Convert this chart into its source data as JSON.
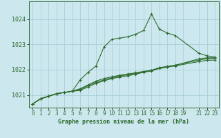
{
  "title": "Graphe pression niveau de la mer (hPa)",
  "bg_color": "#cce8ee",
  "grid_color": "#aacfd8",
  "line_color": "#2d6a2d",
  "xlim": [
    -0.5,
    23.5
  ],
  "ylim": [
    1020.5,
    1024.7
  ],
  "xticks": [
    0,
    1,
    2,
    3,
    4,
    5,
    6,
    7,
    8,
    9,
    10,
    11,
    12,
    13,
    14,
    15,
    16,
    17,
    18,
    19,
    21,
    22,
    23
  ],
  "yticks": [
    1021,
    1022,
    1023,
    1024
  ],
  "series": [
    {
      "x": [
        0,
        1,
        2,
        3,
        4,
        5,
        6,
        7,
        8,
        9,
        10,
        11,
        12,
        13,
        14,
        15,
        16,
        17,
        18,
        21,
        22,
        23
      ],
      "y": [
        1020.65,
        1020.85,
        1020.95,
        1021.05,
        1021.1,
        1021.15,
        1021.6,
        1021.9,
        1022.15,
        1022.9,
        1023.2,
        1023.25,
        1023.3,
        1023.4,
        1023.55,
        1024.2,
        1023.6,
        1023.45,
        1023.35,
        1022.65,
        1022.55,
        1022.5
      ]
    },
    {
      "x": [
        0,
        1,
        2,
        3,
        4,
        5,
        6,
        7,
        8,
        9,
        10,
        11,
        12,
        13,
        14,
        15,
        16,
        17,
        18,
        21,
        22,
        23
      ],
      "y": [
        1020.65,
        1020.85,
        1020.95,
        1021.05,
        1021.1,
        1021.15,
        1021.25,
        1021.4,
        1021.55,
        1021.65,
        1021.72,
        1021.78,
        1021.83,
        1021.88,
        1021.93,
        1021.98,
        1022.08,
        1022.13,
        1022.18,
        1022.38,
        1022.43,
        1022.45
      ]
    },
    {
      "x": [
        0,
        1,
        2,
        3,
        4,
        5,
        6,
        7,
        8,
        9,
        10,
        11,
        12,
        13,
        14,
        15,
        16,
        17,
        18,
        21,
        22,
        23
      ],
      "y": [
        1020.65,
        1020.85,
        1020.95,
        1021.05,
        1021.1,
        1021.15,
        1021.22,
        1021.37,
        1021.5,
        1021.6,
        1021.68,
        1021.75,
        1021.8,
        1021.85,
        1021.92,
        1021.97,
        1022.07,
        1022.12,
        1022.17,
        1022.43,
        1022.47,
        1022.47
      ]
    },
    {
      "x": [
        0,
        1,
        2,
        3,
        4,
        5,
        6,
        7,
        8,
        9,
        10,
        11,
        12,
        13,
        14,
        15,
        16,
        17,
        18,
        21,
        22,
        23
      ],
      "y": [
        1020.65,
        1020.85,
        1020.95,
        1021.05,
        1021.1,
        1021.15,
        1021.18,
        1021.32,
        1021.46,
        1021.56,
        1021.65,
        1021.71,
        1021.76,
        1021.82,
        1021.9,
        1021.95,
        1022.05,
        1022.1,
        1022.15,
        1022.32,
        1022.37,
        1022.38
      ]
    }
  ]
}
